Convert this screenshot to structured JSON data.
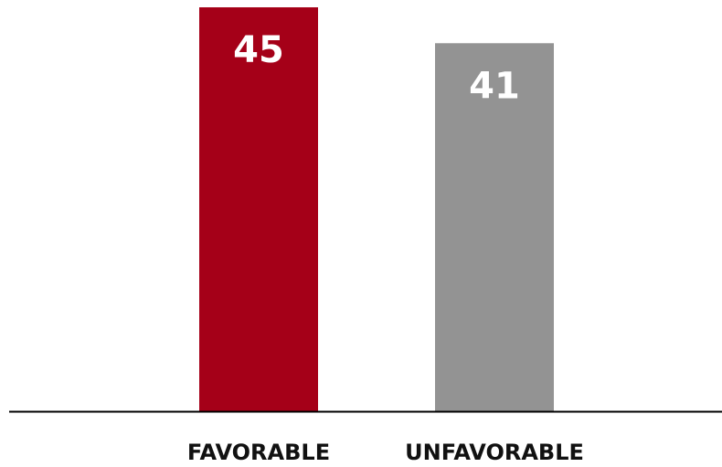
{
  "chart_data": {
    "type": "bar",
    "categories": [
      "FAVORABLE",
      "UNFAVORABLE"
    ],
    "values": [
      45,
      41
    ],
    "colors": [
      "#a50018",
      "#939393"
    ],
    "ylim": [
      0,
      45
    ],
    "grid": false,
    "legend": "none",
    "baseline_color": "#000000"
  }
}
